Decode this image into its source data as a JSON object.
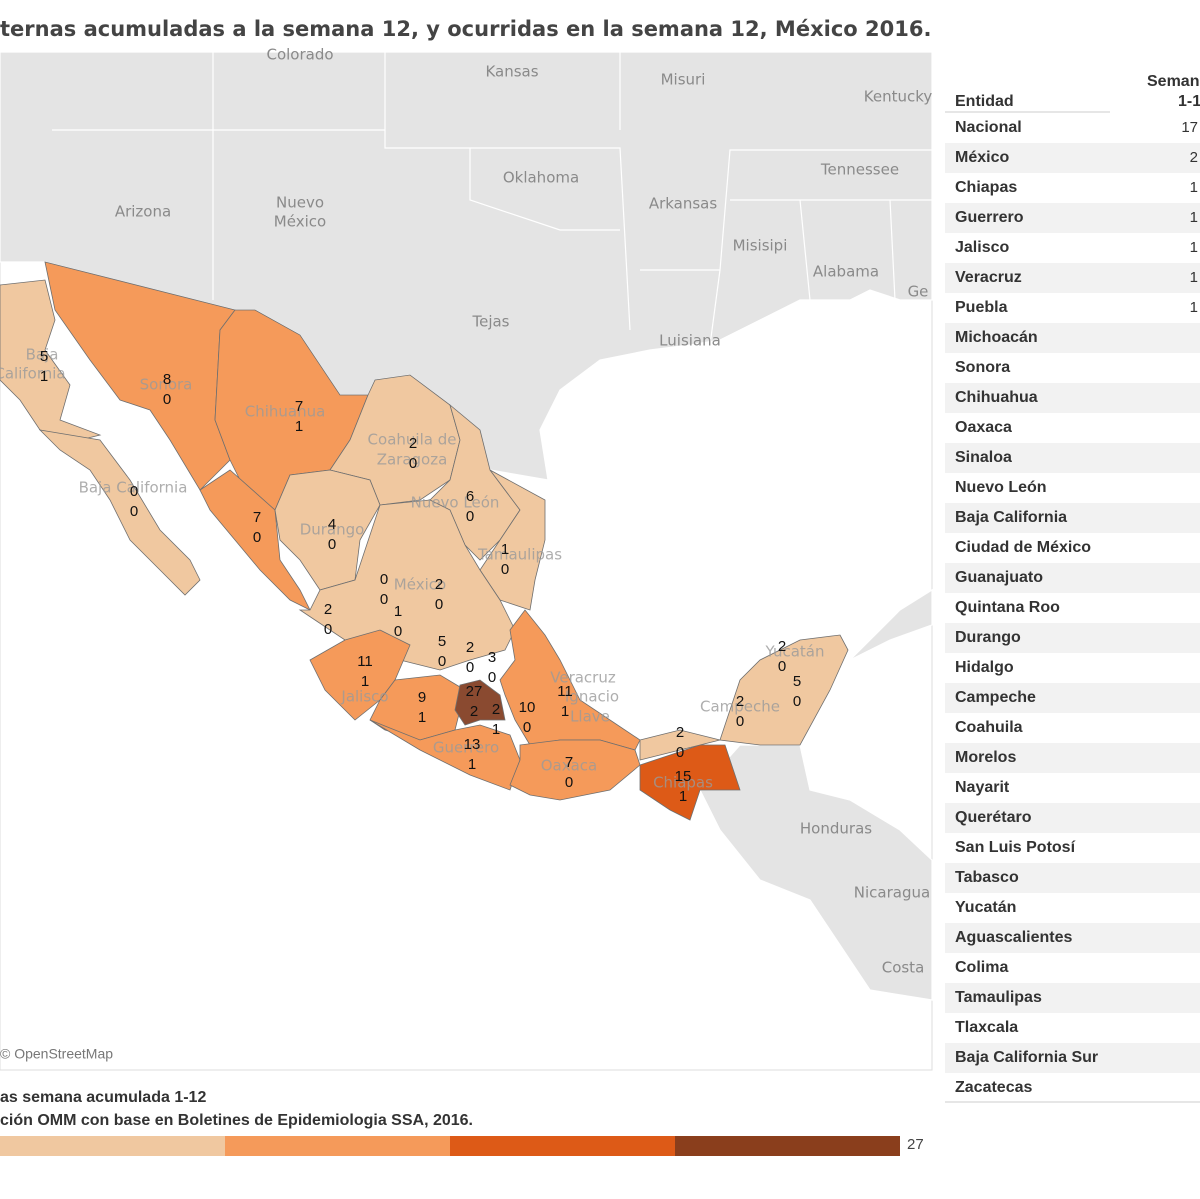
{
  "header": {
    "title": "ternas acumuladas a la semana 12, y ocurridas en la semana 12, México 2016."
  },
  "map": {
    "places": [
      "Colorado",
      "Kansas",
      "Misuri",
      "Kentucky",
      "Oklahoma",
      "Tennessee",
      "Arizona",
      "Nuevo",
      "México",
      "Arkansas",
      "Misisipi",
      "Alabama",
      "Ge",
      "Tejas",
      "Luisiana",
      "Honduras",
      "Nicaragua",
      "Costa",
      "Baja",
      "California",
      "Sonora",
      "Chihuahua",
      "Coahuila de",
      "Zaragoza",
      "Baja California",
      "Durango",
      "Nuevo León",
      "Tamaulipas",
      "México",
      "Jalisco",
      "Guerrero",
      "Oaxaca",
      "Chiapas",
      "Campeche",
      "Yucatán",
      "Veracruz",
      "Ignacio",
      "Llave"
    ],
    "states": [
      [
        5,
        1
      ],
      [
        8,
        0
      ],
      [
        7,
        1
      ],
      [
        2,
        0
      ],
      [
        0,
        0
      ],
      [
        6,
        0
      ],
      [
        7,
        0
      ],
      [
        4,
        0
      ],
      [
        1,
        0
      ],
      [
        0,
        0
      ],
      [
        2,
        0
      ],
      [
        2,
        0
      ],
      [
        1,
        0
      ],
      [
        11,
        1
      ],
      [
        5,
        0
      ],
      [
        2,
        0
      ],
      [
        3,
        0
      ],
      [
        9,
        1
      ],
      [
        27,
        2
      ],
      [
        2,
        1
      ],
      [
        10,
        0
      ],
      [
        11,
        1
      ],
      [
        13,
        1
      ],
      [
        7,
        0
      ],
      [
        15,
        1
      ],
      [
        2,
        0
      ],
      [
        2,
        0
      ],
      [
        2,
        0
      ],
      [
        5,
        0
      ]
    ],
    "attribution": "© OpenStreetMap"
  },
  "table": {
    "header": [
      "Entidad",
      "Seman",
      "1-1"
    ],
    "rows": [
      [
        "Nacional",
        "17"
      ],
      [
        "México",
        "2"
      ],
      [
        "Chiapas",
        "1"
      ],
      [
        "Guerrero",
        "1"
      ],
      [
        "Jalisco",
        "1"
      ],
      [
        "Veracruz",
        "1"
      ],
      [
        "Puebla",
        "1"
      ],
      [
        "Michoacán"
      ],
      [
        "Sonora"
      ],
      [
        "Chihuahua"
      ],
      [
        "Oaxaca"
      ],
      [
        "Sinaloa"
      ],
      [
        "Nuevo León"
      ],
      [
        "Baja California"
      ],
      [
        "Ciudad de México"
      ],
      [
        "Guanajuato"
      ],
      [
        "Quintana Roo"
      ],
      [
        "Durango"
      ],
      [
        "Hidalgo"
      ],
      [
        "Campeche"
      ],
      [
        "Coahuila"
      ],
      [
        "Morelos"
      ],
      [
        "Nayarit"
      ],
      [
        "Querétaro"
      ],
      [
        "San Luis Potosí"
      ],
      [
        "Tabasco"
      ],
      [
        "Yucatán"
      ],
      [
        "Aguascalientes"
      ],
      [
        "Colima"
      ],
      [
        "Tamaulipas"
      ],
      [
        "Tlaxcala"
      ],
      [
        "Baja California Sur"
      ],
      [
        "Zacatecas"
      ]
    ]
  },
  "legend": {
    "caption": "as semana acumulada 1-12",
    "source": "ción OMM con base en Boletines de Epidemiologia SSA, 2016.",
    "colors": [
      "#f0c8a0",
      "#f59a5a",
      "#dd5a17",
      "#8a3e1c"
    ],
    "max": 27
  }
}
